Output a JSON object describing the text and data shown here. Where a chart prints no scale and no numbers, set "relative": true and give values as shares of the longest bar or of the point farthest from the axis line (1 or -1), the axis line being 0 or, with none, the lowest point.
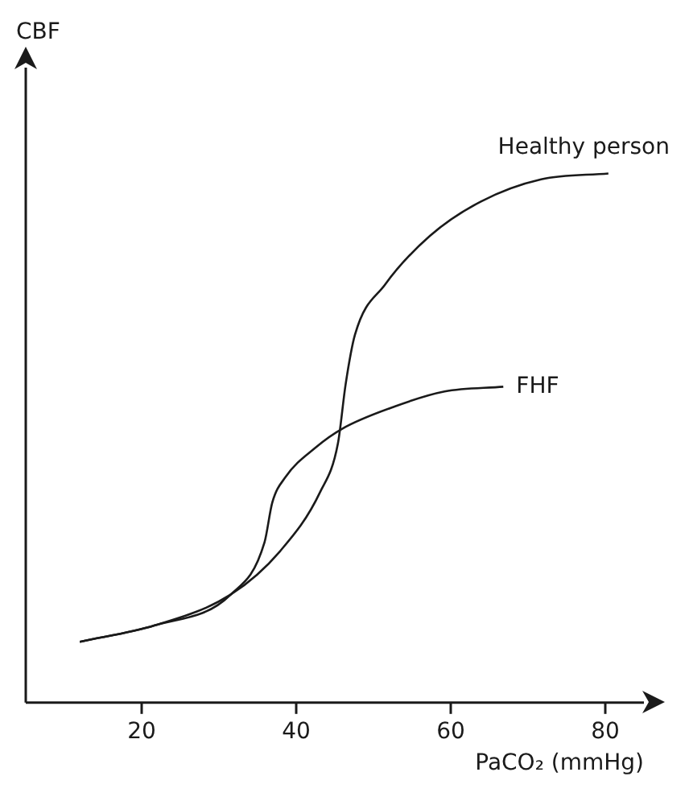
{
  "chart_data": {
    "type": "line",
    "relative": true,
    "xlabel": "PaCO₂ (mmHg)",
    "annotations": [
      "CBF"
    ],
    "xlim": [
      5,
      85
    ],
    "xticks": [
      20,
      40,
      60,
      80
    ],
    "grid": false,
    "legend": false,
    "marker": "none",
    "line_style": "solid",
    "series": [
      {
        "name": "Healthy person",
        "color": "#1a1a1a",
        "x": [
          12.0,
          21.7,
          31.5,
          37.9,
          43.1,
          45.4,
          46.4,
          47.6,
          51.5,
          57.3,
          63.9,
          71.7,
          80.4
        ],
        "values": [
          0.115,
          0.146,
          0.204,
          0.286,
          0.398,
          0.49,
          0.602,
          0.695,
          0.79,
          0.882,
          0.947,
          0.989,
          1.0
        ]
      },
      {
        "name": "FHF",
        "color": "#1a1a1a",
        "x": [
          12.0,
          21.7,
          31.5,
          35.9,
          36.9,
          38.6,
          42.5,
          46.0,
          52.8,
          59.2,
          66.8
        ],
        "values": [
          0.115,
          0.146,
          0.204,
          0.303,
          0.378,
          0.426,
          0.482,
          0.518,
          0.56,
          0.588,
          0.597
        ]
      }
    ]
  }
}
